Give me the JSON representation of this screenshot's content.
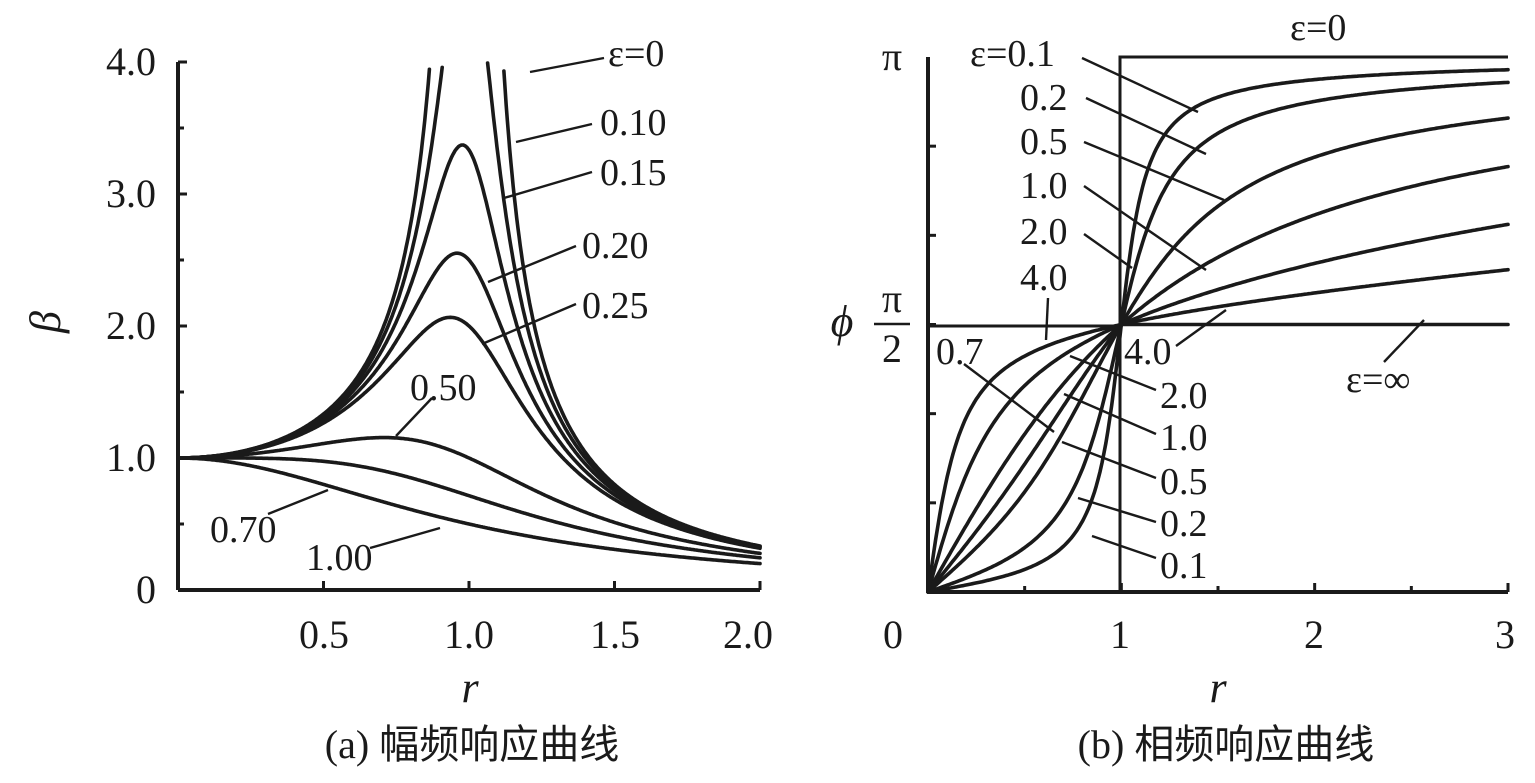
{
  "chart_data": [
    {
      "type": "line",
      "title": "",
      "caption": "(a) 幅频响应曲线",
      "xlabel": "r",
      "ylabel": "β",
      "xlim": [
        0,
        2.0
      ],
      "ylim": [
        0,
        4.0
      ],
      "xticks": [
        0.5,
        1.0,
        1.5,
        2.0
      ],
      "xtick_labels": [
        "0.5",
        "1.0",
        "1.5",
        "2.0"
      ],
      "yticks": [
        0,
        1.0,
        2.0,
        3.0,
        4.0
      ],
      "ytick_labels": [
        "0",
        "1.0",
        "2.0",
        "3.0",
        "4.0"
      ],
      "grid": false,
      "series": [
        {
          "name": "ε=0",
          "label": "ε=0",
          "damping": 0
        },
        {
          "name": "0.10",
          "label": "0.10",
          "damping": 0.1
        },
        {
          "name": "0.15",
          "label": "0.15",
          "damping": 0.15
        },
        {
          "name": "0.20",
          "label": "0.20",
          "damping": 0.2
        },
        {
          "name": "0.25",
          "label": "0.25",
          "damping": 0.25
        },
        {
          "name": "0.50",
          "label": "0.50",
          "damping": 0.5
        },
        {
          "name": "0.70",
          "label": "0.70",
          "damping": 0.7
        },
        {
          "name": "1.00",
          "label": "1.00",
          "damping": 1.0
        }
      ]
    },
    {
      "type": "line",
      "title": "",
      "caption": "(b) 相频响应曲线",
      "xlabel": "r",
      "ylabel": "ϕ",
      "xlim": [
        0,
        3
      ],
      "ylim": [
        0,
        3.14159
      ],
      "xticks": [
        0,
        1,
        2,
        3
      ],
      "xtick_labels": [
        "0",
        "1",
        "2",
        "3"
      ],
      "ytick_labels": {
        "pi": "π",
        "half_num": "π",
        "half_den": "2"
      },
      "grid": false,
      "reference_line_label": "ε=0",
      "series": [
        {
          "name": "ε=0.1",
          "label": "ε=0.1",
          "damping": 0.1
        },
        {
          "name": "0.2",
          "label": "0.2",
          "damping": 0.2
        },
        {
          "name": "0.5",
          "label": "0.5",
          "damping": 0.5
        },
        {
          "name": "1.0",
          "label": "1.0",
          "damping": 1.0
        },
        {
          "name": "2.0",
          "label": "2.0",
          "damping": 2.0
        },
        {
          "name": "4.0",
          "label": "4.0",
          "damping": 4.0
        },
        {
          "name": "0.7",
          "label": "0.7",
          "damping": 0.7
        },
        {
          "name": "ε=∞",
          "label": "ε=∞",
          "damping": "infinity"
        }
      ],
      "lower_labels": [
        "4.0",
        "2.0",
        "1.0",
        "0.5",
        "0.2",
        "0.1"
      ]
    }
  ]
}
